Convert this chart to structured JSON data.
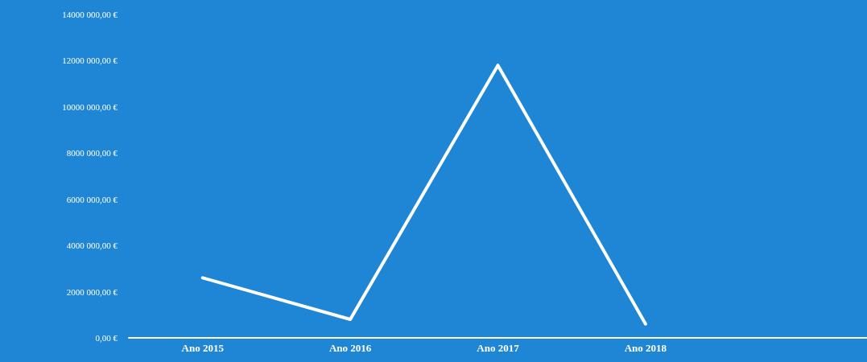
{
  "chart_data": {
    "type": "line",
    "categories": [
      "Ano 2015",
      "Ano 2016",
      "Ano 2017",
      "Ano 2018",
      null
    ],
    "series": [
      {
        "color": "#ffffff",
        "values": [
          2600000,
          800000,
          11800000,
          600000,
          null
        ]
      }
    ],
    "ylim": [
      0,
      14000000
    ],
    "yticks": [
      {
        "value": 0,
        "label": "0,00 €"
      },
      {
        "value": 2000000,
        "label": "2000 000,00 €"
      },
      {
        "value": 4000000,
        "label": "4000 000,00 €"
      },
      {
        "value": 6000000,
        "label": "6000 000,00 €"
      },
      {
        "value": 8000000,
        "label": "8000 000,00 €"
      },
      {
        "value": 10000000,
        "label": "10000 000,00 €"
      },
      {
        "value": 12000000,
        "label": "12000 000,00 €"
      },
      {
        "value": 14000000,
        "label": "14000 000,00 €"
      }
    ],
    "grid": false,
    "marker": "none",
    "line_style": "solid"
  }
}
